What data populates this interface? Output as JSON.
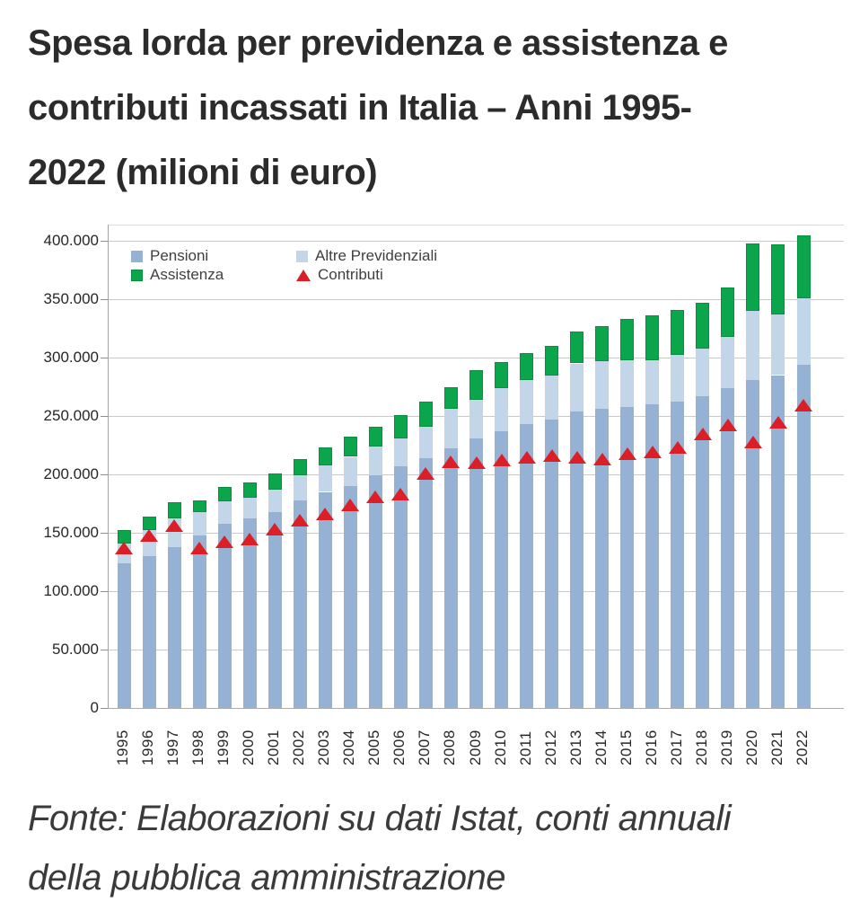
{
  "title": {
    "text": "Spesa lorda per previdenza e assistenza e contributi incassati in Italia – Anni 1995-2022 (milioni di euro)",
    "lines": [
      "Spesa lorda per previdenza e assistenza e",
      "contributi incassati in Italia – Anni 1995-",
      "2022 (milioni di euro)"
    ]
  },
  "footer": {
    "text": "Fonte: Elaborazioni su dati Istat, conti annuali della pubblica amministrazione",
    "lines": [
      "Fonte: Elaborazioni su dati Istat, conti annuali",
      "della pubblica amministrazione"
    ]
  },
  "legend": {
    "items": [
      {
        "label": "Pensioni",
        "swatch": "square",
        "color": "#95b1d3"
      },
      {
        "label": "Altre Previdenziali",
        "swatch": "square",
        "color": "#c3d6e9"
      },
      {
        "label": "Assistenza",
        "swatch": "square",
        "color": "#0ba54b"
      },
      {
        "label": "Contributi",
        "swatch": "triangle",
        "color": "#dc1e26"
      }
    ]
  },
  "chart_data": {
    "type": "bar",
    "stacked": true,
    "title": "Spesa lorda per previdenza e assistenza e contributi incassati in Italia – Anni 1995-2022 (milioni di euro)",
    "xlabel": "",
    "ylabel": "",
    "grid": true,
    "legend_position": "top-left-inside",
    "ylim": [
      0,
      414000
    ],
    "yticks": {
      "values": [
        0,
        50000,
        100000,
        150000,
        200000,
        250000,
        300000,
        350000,
        400000
      ],
      "labels": [
        "0",
        "50.000",
        "100.000",
        "150.000",
        "200.000",
        "250.000",
        "300.000",
        "350.000",
        "400.000"
      ]
    },
    "years": [
      "1995",
      "1996",
      "1997",
      "1998",
      "1999",
      "2000",
      "2001",
      "2002",
      "2003",
      "2004",
      "2005",
      "2006",
      "2007",
      "2008",
      "2009",
      "2010",
      "2011",
      "2012",
      "2013",
      "2014",
      "2015",
      "2016",
      "2017",
      "2018",
      "2019",
      "2020",
      "2021",
      "2022"
    ],
    "series": [
      {
        "name": "Pensioni",
        "color": "#95b1d3",
        "values": [
          124000,
          130000,
          138000,
          148000,
          158000,
          162000,
          168000,
          178000,
          185000,
          190000,
          199000,
          207000,
          214000,
          222000,
          231000,
          237000,
          243000,
          247000,
          254000,
          256000,
          258000,
          260000,
          262000,
          267000,
          274000,
          281000,
          285000,
          294000
        ]
      },
      {
        "name": "Altre Previdenziali",
        "color": "#c3d6e9",
        "values": [
          17000,
          22000,
          24000,
          20000,
          19000,
          18000,
          19000,
          21000,
          23000,
          25000,
          25000,
          24000,
          27000,
          34000,
          33000,
          37000,
          38000,
          38000,
          41000,
          41000,
          40000,
          38000,
          40000,
          41000,
          44000,
          59000,
          52000,
          57000
        ]
      },
      {
        "name": "Assistenza",
        "color": "#0ba54b",
        "border_color": "#0a8f41",
        "values": [
          11000,
          12000,
          14000,
          10000,
          12000,
          13000,
          14000,
          14000,
          15000,
          17000,
          17000,
          20000,
          21000,
          19000,
          25000,
          22000,
          23000,
          25000,
          27000,
          30000,
          35000,
          38000,
          39000,
          39000,
          42000,
          58000,
          60000,
          54000
        ]
      }
    ],
    "markers": {
      "name": "Contributi",
      "shape": "triangle-up",
      "color": "#dc1e26",
      "values": [
        137000,
        148000,
        156000,
        137000,
        142000,
        145000,
        153000,
        161000,
        166000,
        174000,
        181000,
        183000,
        201000,
        211000,
        210000,
        212000,
        215000,
        216000,
        215000,
        213000,
        218000,
        219000,
        223000,
        235000,
        242000,
        228000,
        245000,
        259000
      ]
    }
  }
}
